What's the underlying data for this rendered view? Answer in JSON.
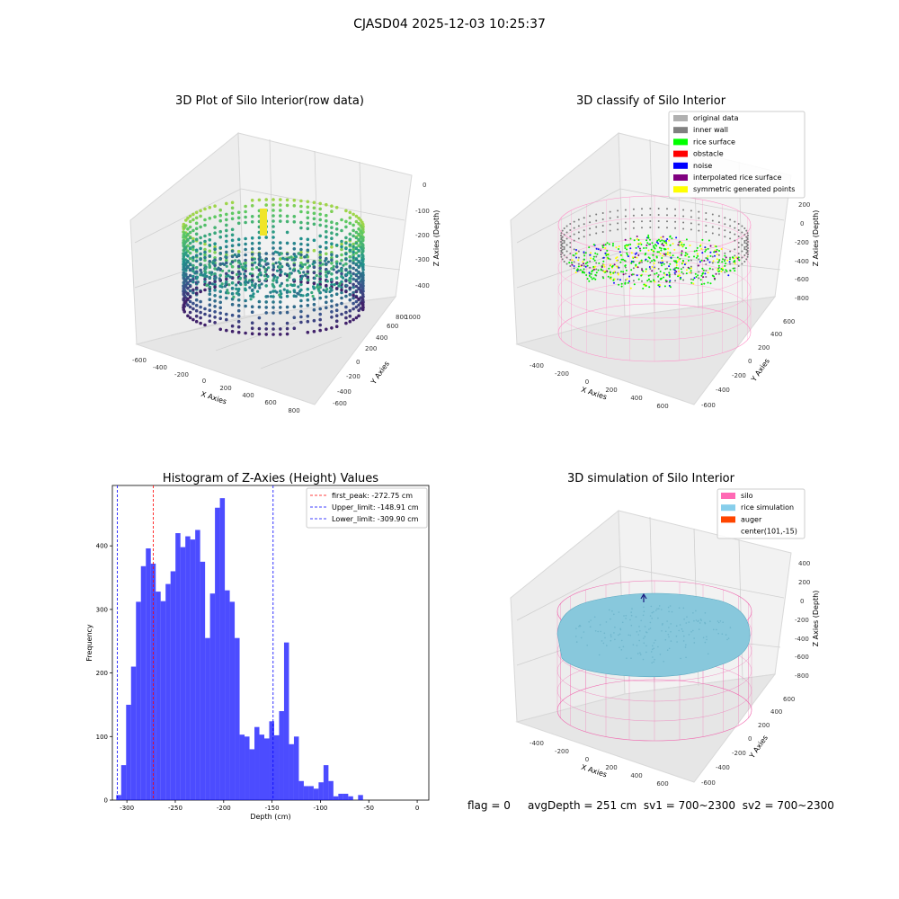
{
  "suptitle": "CJASD04 2025-12-03 10:25:37",
  "footer": {
    "flag": "flag = 0",
    "avg_depth": "avgDepth = 251 cm",
    "sv1": "sv1 = 700~2300",
    "sv2": "sv2 = 700~2300"
  },
  "chart_data": [
    {
      "type": "scatter",
      "title": "3D Plot of Silo Interior(row data)",
      "xlabel": "X Axies",
      "ylabel": "Y Axies",
      "zlabel": "Z Axies (Depth)",
      "x_ticks": [
        "-600",
        "-400",
        "-200",
        "0",
        "200",
        "400",
        "600",
        "800"
      ],
      "y_ticks": [
        "-600",
        "-400",
        "-200",
        "0",
        "200",
        "400",
        "600",
        "800",
        "1000"
      ],
      "z_ticks": [
        "-400",
        "-300",
        "-200",
        "-100",
        "0"
      ],
      "colormap": "viridis"
    },
    {
      "type": "scatter",
      "title": "3D classify of Silo Interior",
      "xlabel": "X Axies",
      "ylabel": "Y Axies",
      "zlabel": "Z Axies (Depth)",
      "x_ticks": [
        "-400",
        "-200",
        "0",
        "200",
        "400",
        "600"
      ],
      "y_ticks": [
        "-600",
        "-400",
        "-200",
        "0",
        "200",
        "400",
        "600"
      ],
      "z_ticks": [
        "-800",
        "-600",
        "-400",
        "-200",
        "0",
        "200"
      ],
      "legend": [
        {
          "label": "original data",
          "color": "#b0b0b0"
        },
        {
          "label": "inner wall",
          "color": "#808080"
        },
        {
          "label": "rice surface",
          "color": "#00ff00"
        },
        {
          "label": "obstacle",
          "color": "#ff0000"
        },
        {
          "label": "noise",
          "color": "#0000ff"
        },
        {
          "label": "interpolated rice surface",
          "color": "#800080"
        },
        {
          "label": "symmetric generated points",
          "color": "#ffff00"
        }
      ],
      "legend_position": "top-right"
    },
    {
      "type": "bar",
      "title": "Histogram of Z-Axies (Height) Values",
      "xlabel": "Depth (cm)",
      "ylabel": "Frequency",
      "xlim": [
        -315,
        12
      ],
      "ylim": [
        0,
        495
      ],
      "bar_color": "#0000ff",
      "bin_width": 5.1,
      "x_ticks": [
        -300,
        -250,
        -200,
        -150,
        -100,
        -50,
        0
      ],
      "y_ticks": [
        0,
        100,
        200,
        300,
        400
      ],
      "bins_left_edge": [
        -311,
        -305.9,
        -300.8,
        -295.7,
        -290.6,
        -285.5,
        -280.4,
        -275.3,
        -270.2,
        -265.1,
        -260.0,
        -254.9,
        -249.8,
        -244.7,
        -239.6,
        -234.5,
        -229.4,
        -224.3,
        -219.2,
        -214.1,
        -209.0,
        -203.9,
        -198.8,
        -193.7,
        -188.6,
        -183.5,
        -178.4,
        -173.3,
        -168.2,
        -163.1,
        -158.0,
        -152.9,
        -147.8,
        -142.7,
        -137.6,
        -132.5,
        -127.4,
        -122.3,
        -117.2,
        -112.1,
        -107.0,
        -101.9,
        -96.8,
        -91.7,
        -86.6,
        -81.5,
        -76.4,
        -71.3,
        -66.2,
        -61.1,
        -56.0,
        -50.9,
        -45.8,
        -40.7,
        -35.6,
        -30.5,
        -25.4,
        -20.3,
        -15.2,
        -10.1,
        -5.0,
        0.1
      ],
      "counts": [
        8,
        55,
        150,
        210,
        312,
        368,
        396,
        372,
        328,
        313,
        340,
        360,
        420,
        398,
        415,
        410,
        425,
        375,
        255,
        325,
        460,
        475,
        330,
        312,
        255,
        103,
        100,
        80,
        115,
        103,
        97,
        124,
        102,
        140,
        248,
        88,
        100,
        30,
        22,
        22,
        18,
        28,
        55,
        30,
        6,
        10,
        10,
        6,
        0,
        8,
        0,
        0,
        0,
        0,
        0,
        0,
        0,
        0,
        0,
        0,
        0,
        0
      ],
      "vlines": [
        {
          "label": "first_peak: -272.75 cm",
          "x": -272.75,
          "color": "#ff0000"
        },
        {
          "label": "Upper_limit: -148.91 cm",
          "x": -148.91,
          "color": "#0000ff"
        },
        {
          "label": "Lower_limit: -309.90 cm",
          "x": -309.9,
          "color": "#0000ff"
        }
      ],
      "legend_position": "top-right"
    },
    {
      "type": "scatter",
      "title": "3D simulation of Silo Interior",
      "xlabel": "X Axies",
      "ylabel": "Y Axies",
      "zlabel": "Z Axies (Depth)",
      "x_ticks": [
        "-400",
        "-200",
        "0",
        "200",
        "400",
        "600"
      ],
      "y_ticks": [
        "-600",
        "-400",
        "-200",
        "0",
        "200",
        "400",
        "600"
      ],
      "z_ticks": [
        "-800",
        "-600",
        "-400",
        "-200",
        "0",
        "200",
        "400"
      ],
      "legend": [
        {
          "label": "silo",
          "color": "#ff69b4"
        },
        {
          "label": "rice simulation",
          "color": "#87ceeb"
        },
        {
          "label": "auger",
          "color": "#ff4500"
        },
        {
          "label": "center(101,-15)",
          "color": ""
        }
      ],
      "legend_position": "top-right"
    }
  ]
}
